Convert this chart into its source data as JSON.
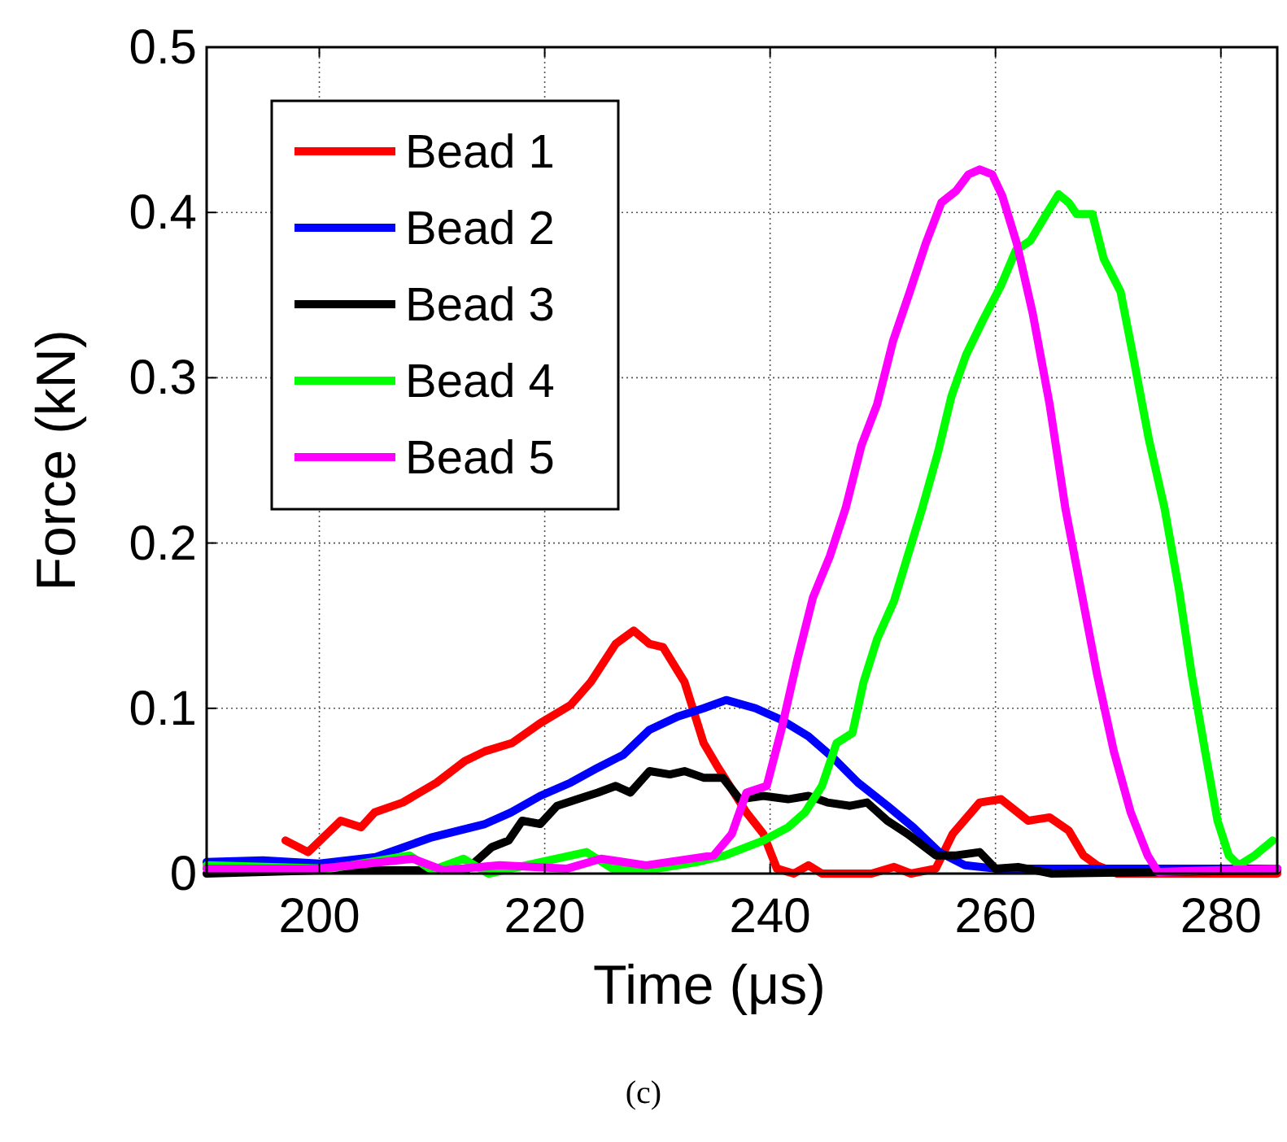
{
  "chart_data": {
    "type": "line",
    "xlabel": "Time (μs)",
    "ylabel": "Force (kN)",
    "annotations": [
      "(c)"
    ],
    "xlim": [
      190,
      285
    ],
    "xticks": [
      200,
      220,
      240,
      260,
      280
    ],
    "ylim": [
      0,
      0.5
    ],
    "yticks": [
      0,
      0.1,
      0.2,
      0.3,
      0.4,
      0.5
    ],
    "grid": true,
    "legend": "top left",
    "marker": "none",
    "line_style": "solid",
    "series": [
      {
        "name": "Bead 1",
        "color": "#ff0000",
        "x": [
          197,
          199,
          201.9,
          203.7,
          204.9,
          207.4,
          210.4,
          212.9,
          214.7,
          217.1,
          219.6,
          222.3,
          224.1,
          226.3,
          227.9,
          229.3,
          230.5,
          232.4,
          234.1,
          235.4,
          237.9,
          239.4,
          240.6,
          242.1,
          243.4,
          244.6,
          249,
          251,
          252.5,
          254.7,
          256.2,
          258.6,
          260.5,
          262.9,
          264.8,
          266.5,
          267.8,
          269,
          270.8,
          285
        ],
        "values": [
          0.02,
          0.013,
          0.032,
          0.028,
          0.037,
          0.043,
          0.055,
          0.068,
          0.074,
          0.079,
          0.091,
          0.102,
          0.116,
          0.139,
          0.147,
          0.139,
          0.137,
          0.116,
          0.079,
          0.064,
          0.037,
          0.024,
          0.003,
          0,
          0.005,
          0,
          0,
          0.004,
          0,
          0.003,
          0.024,
          0.043,
          0.045,
          0.032,
          0.034,
          0.026,
          0.011,
          0.005,
          0,
          0
        ]
      },
      {
        "name": "Bead 2",
        "color": "#0000ff",
        "x": [
          190,
          195,
          200,
          205,
          210,
          214.7,
          217,
          219.6,
          222.3,
          224.7,
          227,
          229.3,
          231.8,
          234.1,
          236.1,
          238.7,
          241,
          243.4,
          245.6,
          247.8,
          250.4,
          252.7,
          255,
          257.3,
          260,
          270,
          285
        ],
        "values": [
          0.007,
          0.008,
          0.006,
          0.01,
          0.022,
          0.03,
          0.037,
          0.047,
          0.055,
          0.064,
          0.072,
          0.087,
          0.095,
          0.1,
          0.105,
          0.1,
          0.093,
          0.083,
          0.07,
          0.055,
          0.041,
          0.028,
          0.013,
          0.005,
          0.003,
          0.003,
          0.003
        ]
      },
      {
        "name": "Bead 3",
        "color": "#000000",
        "x": [
          190,
          200,
          213,
          215.3,
          216.8,
          218,
          219.6,
          221.1,
          222.9,
          224.7,
          226.3,
          227.6,
          229.3,
          231.1,
          232.4,
          234.1,
          235.8,
          237.3,
          239.4,
          241.6,
          243.4,
          245.1,
          247.1,
          248.6,
          250.4,
          252.2,
          254.7,
          256.5,
          258.6,
          260,
          262,
          265,
          285
        ],
        "values": [
          0,
          0.002,
          0.002,
          0.016,
          0.02,
          0.032,
          0.03,
          0.041,
          0.045,
          0.049,
          0.053,
          0.049,
          0.062,
          0.06,
          0.062,
          0.058,
          0.058,
          0.045,
          0.047,
          0.045,
          0.047,
          0.043,
          0.041,
          0.043,
          0.032,
          0.024,
          0.011,
          0.011,
          0.013,
          0.003,
          0.004,
          0,
          0.002
        ]
      },
      {
        "name": "Bead 4",
        "color": "#00ff00",
        "x": [
          190,
          201,
          208,
          210,
          212.8,
          215,
          223.7,
          226,
          230,
          233.5,
          236,
          239.4,
          241.6,
          243.1,
          244.6,
          245.9,
          247.3,
          248.3,
          249.5,
          251,
          252.2,
          253.5,
          254.9,
          256.1,
          257.4,
          258.9,
          260.5,
          261.8,
          263.1,
          264.6,
          265.6,
          266.5,
          267.2,
          268.6,
          269.6,
          271.1,
          272.3,
          273.6,
          275,
          276.3,
          277.4,
          278.6,
          279.7,
          280.7,
          281.6,
          283,
          284.6
        ],
        "values": [
          0.005,
          0.003,
          0.011,
          0.002,
          0.009,
          0,
          0.013,
          0.003,
          0.003,
          0.007,
          0.011,
          0.02,
          0.028,
          0.037,
          0.053,
          0.079,
          0.085,
          0.116,
          0.142,
          0.165,
          0.192,
          0.221,
          0.255,
          0.289,
          0.314,
          0.335,
          0.356,
          0.377,
          0.383,
          0.4,
          0.411,
          0.406,
          0.399,
          0.399,
          0.372,
          0.352,
          0.31,
          0.263,
          0.221,
          0.171,
          0.121,
          0.074,
          0.032,
          0.011,
          0.005,
          0.011,
          0.02
        ]
      },
      {
        "name": "Bead 5",
        "color": "#ff00ff",
        "x": [
          190,
          200,
          208.3,
          211,
          216,
          222,
          225,
          229,
          235,
          236.6,
          237.9,
          239.7,
          241,
          242.4,
          243.8,
          245.3,
          246.7,
          248.1,
          249.5,
          250.9,
          252.4,
          253.8,
          255.2,
          256.5,
          257.6,
          258.6,
          259.7,
          260.6,
          261.9,
          263.3,
          264.8,
          266.2,
          267.6,
          269,
          270.5,
          272,
          273.5,
          274.4,
          285
        ],
        "values": [
          0.003,
          0.003,
          0.009,
          0.002,
          0.005,
          0.003,
          0.009,
          0.005,
          0.011,
          0.024,
          0.049,
          0.053,
          0.087,
          0.129,
          0.167,
          0.192,
          0.221,
          0.259,
          0.284,
          0.322,
          0.352,
          0.381,
          0.406,
          0.413,
          0.423,
          0.426,
          0.423,
          0.41,
          0.381,
          0.339,
          0.284,
          0.221,
          0.171,
          0.121,
          0.074,
          0.037,
          0.011,
          0.001,
          0.003
        ]
      }
    ]
  }
}
